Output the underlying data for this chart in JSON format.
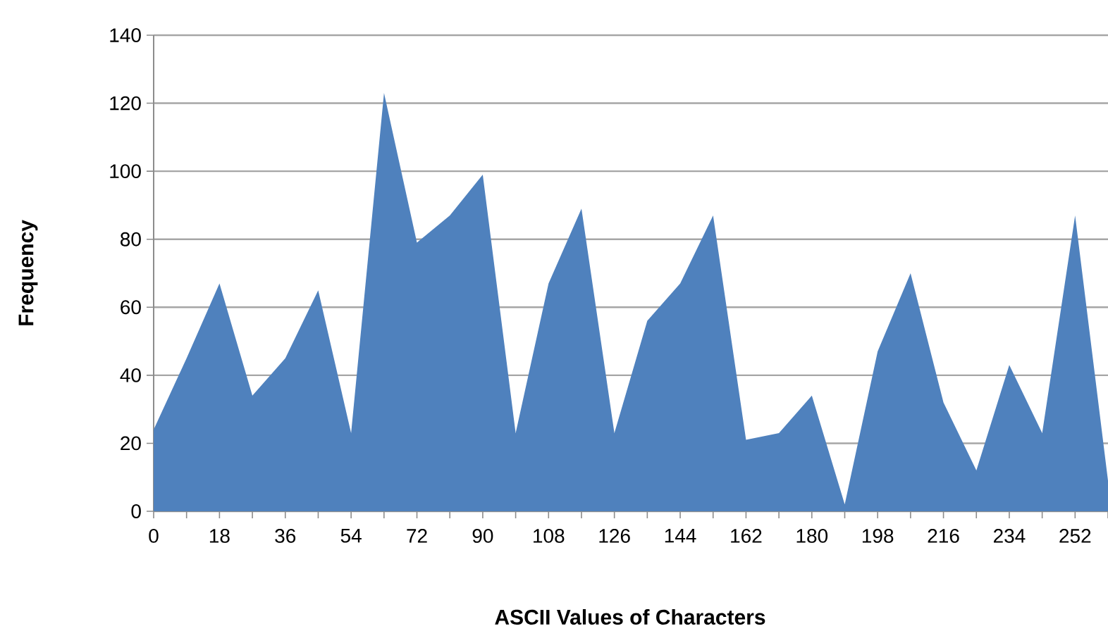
{
  "chart_data": {
    "type": "area",
    "xlabel": "ASCII Values of Characters",
    "ylabel": "Frequency",
    "categories": [
      "0",
      null,
      "18",
      null,
      "36",
      null,
      "54",
      null,
      "72",
      null,
      "90",
      null,
      "108",
      null,
      "126",
      null,
      "144",
      null,
      "162",
      null,
      "180",
      null,
      "198",
      null,
      "216",
      null,
      "234",
      null,
      "252",
      null
    ],
    "values": [
      24,
      45,
      67,
      34,
      45,
      65,
      23,
      123,
      79,
      87,
      99,
      23,
      67,
      89,
      23,
      56,
      67,
      87,
      21,
      23,
      34,
      2,
      47,
      70,
      32,
      12,
      43,
      23,
      87,
      9
    ],
    "color": "#4f81bd",
    "ylim": [
      0,
      140
    ],
    "yticks": [
      0,
      20,
      40,
      60,
      80,
      100,
      120,
      140
    ],
    "grid": "y"
  }
}
